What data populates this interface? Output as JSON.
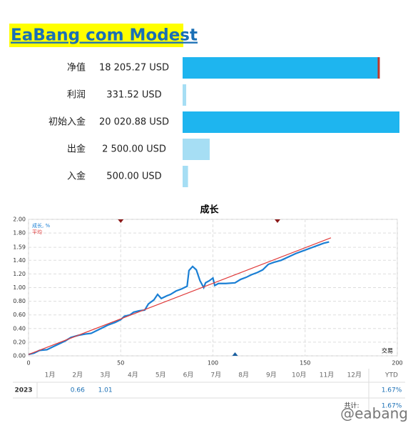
{
  "title": "EaBang com Modest",
  "summary": [
    {
      "label": "净值",
      "value": 18205.27,
      "text": "18 205.27 USD",
      "color": "#1eb5ef",
      "end_color": "#c0392b"
    },
    {
      "label": "利润",
      "value": 331.52,
      "text": "331.52 USD",
      "color": "#a6def4"
    },
    {
      "label": "初始入金",
      "value": 20020.88,
      "text": "20 020.88 USD",
      "color": "#1eb5ef"
    },
    {
      "label": "出金",
      "value": 2500.0,
      "text": "2 500.00 USD",
      "color": "#a6def4"
    },
    {
      "label": "入金",
      "value": 500.0,
      "text": "500.00 USD",
      "color": "#a6def4"
    }
  ],
  "chart_data": {
    "type": "line",
    "title": "成长",
    "xlabel": "交易",
    "xlim": [
      0,
      200
    ],
    "xticks": [
      0,
      50,
      100,
      150,
      200
    ],
    "ylim": [
      0,
      2
    ],
    "yticks": [
      {
        "value": 0,
        "label": "0.00"
      },
      {
        "value": 0.2,
        "label": "0.20"
      },
      {
        "value": 0.4,
        "label": "0.40"
      },
      {
        "value": 0.6,
        "label": "0.60"
      },
      {
        "value": 0.8,
        "label": "0.80"
      },
      {
        "value": 1,
        "label": "1.00"
      },
      {
        "value": 1.2,
        "label": "1.20"
      },
      {
        "value": 1.4,
        "label": "1.40"
      },
      {
        "value": 1.59,
        "label": "1.59"
      },
      {
        "value": 1.8,
        "label": "1.80"
      },
      {
        "value": 2,
        "label": "2.00"
      }
    ],
    "grid": true,
    "series": [
      {
        "name": "成长, %",
        "color": "#1a7fd4",
        "x": [
          0,
          3,
          6,
          10,
          13,
          17,
          20,
          23,
          27,
          31,
          34,
          37,
          40,
          43,
          47,
          50,
          52,
          55,
          57,
          60,
          63,
          65,
          68,
          70,
          72,
          75,
          77,
          80,
          83,
          86,
          87,
          89,
          91,
          93,
          95,
          96,
          98,
          100,
          101,
          103,
          107,
          112,
          115,
          118,
          121,
          124,
          127,
          130,
          133,
          137,
          141,
          145,
          149,
          153,
          157,
          160,
          163
        ],
        "values": [
          0.02,
          0.04,
          0.08,
          0.09,
          0.13,
          0.18,
          0.22,
          0.27,
          0.3,
          0.32,
          0.33,
          0.37,
          0.41,
          0.45,
          0.49,
          0.53,
          0.58,
          0.6,
          0.64,
          0.66,
          0.67,
          0.76,
          0.82,
          0.9,
          0.84,
          0.88,
          0.9,
          0.95,
          0.98,
          1.02,
          1.25,
          1.31,
          1.26,
          1.1,
          1.0,
          1.07,
          1.1,
          1.14,
          1.03,
          1.06,
          1.06,
          1.07,
          1.12,
          1.15,
          1.19,
          1.22,
          1.26,
          1.34,
          1.37,
          1.4,
          1.45,
          1.5,
          1.54,
          1.58,
          1.62,
          1.65,
          1.67
        ]
      },
      {
        "name": "平均",
        "color": "#e03a3a",
        "x": [
          0,
          164
        ],
        "values": [
          0.02,
          1.73
        ]
      }
    ],
    "markers": [
      {
        "x": 50,
        "side": "top",
        "color": "#8b1a1a"
      },
      {
        "x": 135,
        "side": "top",
        "color": "#8b1a1a"
      },
      {
        "x": 112,
        "side": "bottom",
        "color": "#1a5fa0"
      }
    ]
  },
  "table": {
    "header": [
      "1月",
      "2月",
      "3月",
      "4月",
      "5月",
      "6月",
      "7月",
      "8月",
      "9月",
      "10月",
      "11月",
      "12月",
      "YTD"
    ],
    "rows": [
      {
        "year": "2023",
        "months": [
          null,
          0.66,
          1.01,
          null,
          null,
          null,
          null,
          null,
          null,
          null,
          null,
          null
        ],
        "ytd": "1.67%"
      }
    ],
    "total_label": "共计:",
    "total": "1.67%"
  },
  "watermark": "@eabang"
}
